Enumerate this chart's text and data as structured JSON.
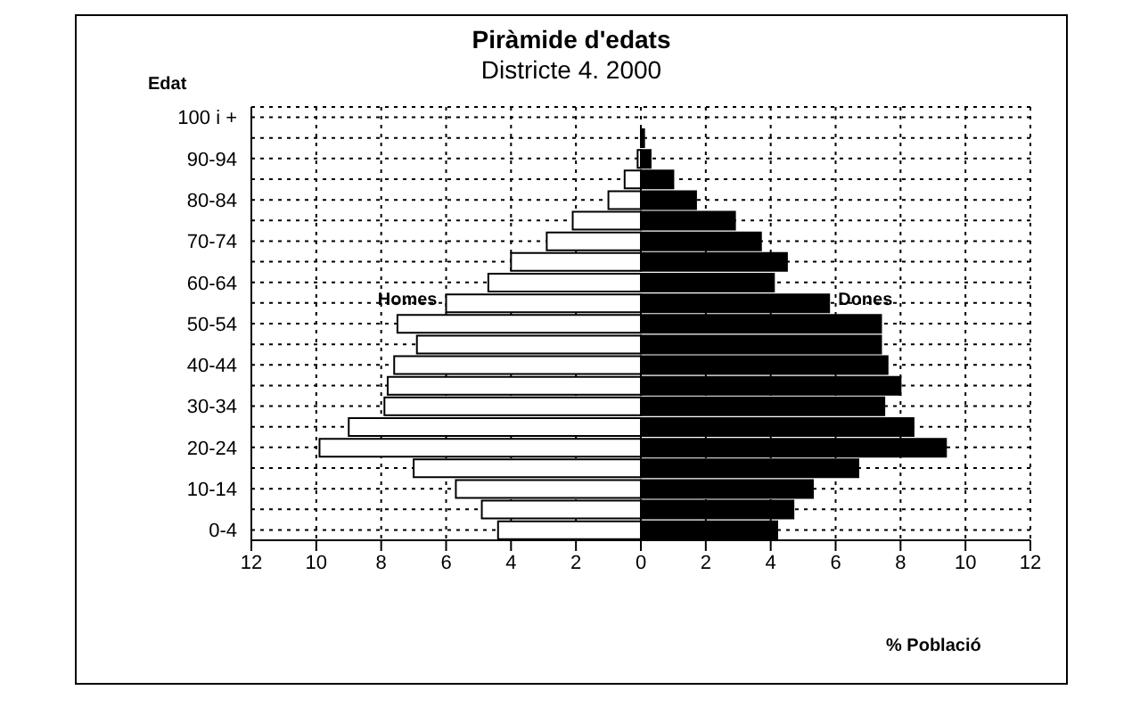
{
  "chart_data": {
    "type": "bar",
    "orientation": "horizontal",
    "stacked": true,
    "title": "Piràmide d'edats",
    "subtitle": "Districte 4. 2000",
    "ylabel": "Edat",
    "xlabel": "% Població",
    "categories": [
      "100 i +",
      null,
      "90-94",
      null,
      "80-84",
      null,
      "70-74",
      null,
      "60-64",
      null,
      "50-54",
      null,
      "40-44",
      null,
      "30-34",
      null,
      "20-24",
      null,
      "10-14",
      null,
      "0-4"
    ],
    "series": [
      {
        "name": "Homes",
        "color": "#ffffff",
        "values": [
          0,
          0,
          -0.1,
          -0.5,
          -1.0,
          -2.1,
          -2.9,
          -4.0,
          -4.7,
          -6.0,
          -7.5,
          -6.9,
          -7.6,
          -7.8,
          -7.9,
          -9.0,
          -9.9,
          -7.0,
          -5.7,
          -4.9,
          -4.4
        ]
      },
      {
        "name": "Dones",
        "color": "#000000",
        "values": [
          0,
          0.1,
          0.3,
          1.0,
          1.7,
          2.9,
          3.7,
          4.5,
          4.1,
          5.8,
          7.4,
          7.4,
          7.6,
          8.0,
          7.5,
          8.4,
          9.4,
          6.7,
          5.3,
          4.7,
          4.2
        ]
      }
    ],
    "xlim": [
      -12,
      12
    ],
    "xticks": [
      {
        "value": -12,
        "label": "12"
      },
      {
        "value": -10,
        "label": "10"
      },
      {
        "value": -8,
        "label": "8"
      },
      {
        "value": -6,
        "label": "6"
      },
      {
        "value": -4,
        "label": "4"
      },
      {
        "value": -2,
        "label": "2"
      },
      0,
      2,
      4,
      6,
      8,
      10,
      12
    ],
    "grid": true
  }
}
